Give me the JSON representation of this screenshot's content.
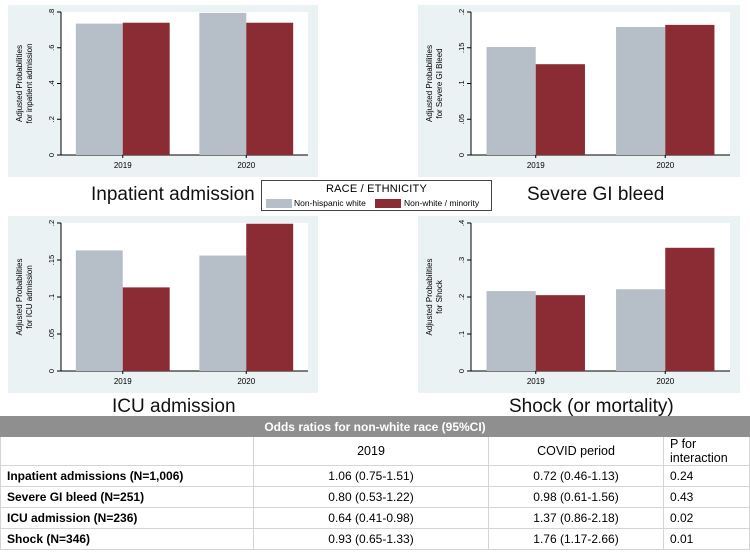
{
  "colors": {
    "white_series": "#b6bfc8",
    "minority_series": "#8b2c35",
    "plot_bg": "#eaf2f3",
    "axis": "#000000",
    "table_header_bg": "#8f8f8f"
  },
  "legend": {
    "title": "RACE / ETHNICITY",
    "items": [
      "Non-hispanic white",
      "Non-white / minority"
    ]
  },
  "chart_data": [
    {
      "type": "bar",
      "caption": "Inpatient admission",
      "ylabel_lines": [
        "Adjusted Probabilities",
        "for inpatient admission"
      ],
      "categories": [
        "2019",
        "2020"
      ],
      "series": [
        {
          "name": "Non-hispanic white",
          "values": [
            0.735,
            0.795
          ]
        },
        {
          "name": "Non-white / minority",
          "values": [
            0.74,
            0.74
          ]
        }
      ],
      "ylim": [
        0,
        0.8
      ],
      "yticks": [
        0,
        0.2,
        0.4,
        0.6,
        0.8
      ],
      "ytick_labels": [
        "0",
        ".2",
        ".4",
        ".6",
        ".8"
      ]
    },
    {
      "type": "bar",
      "caption": "Severe GI bleed",
      "ylabel_lines": [
        "Adjusted Probabilities",
        "for Severe GI Bleed"
      ],
      "categories": [
        "2019",
        "2020"
      ],
      "series": [
        {
          "name": "Non-hispanic white",
          "values": [
            0.151,
            0.179
          ]
        },
        {
          "name": "Non-white / minority",
          "values": [
            0.127,
            0.182
          ]
        }
      ],
      "ylim": [
        0,
        0.2
      ],
      "yticks": [
        0,
        0.05,
        0.1,
        0.15,
        0.2
      ],
      "ytick_labels": [
        "0",
        ".05",
        ".1",
        ".15",
        ".2"
      ]
    },
    {
      "type": "bar",
      "caption": "ICU admission",
      "ylabel_lines": [
        "Adjusted Probabilities",
        "for ICU admission"
      ],
      "categories": [
        "2019",
        "2020"
      ],
      "series": [
        {
          "name": "Non-hispanic white",
          "values": [
            0.163,
            0.156
          ]
        },
        {
          "name": "Non-white / minority",
          "values": [
            0.113,
            0.199
          ]
        }
      ],
      "ylim": [
        0,
        0.2
      ],
      "yticks": [
        0,
        0.05,
        0.1,
        0.15,
        0.2
      ],
      "ytick_labels": [
        "0",
        ".05",
        ".1",
        ".15",
        ".2"
      ]
    },
    {
      "type": "bar",
      "caption": "Shock (or mortality)",
      "ylabel_lines": [
        "Adjusted Probabilities",
        "for Shock"
      ],
      "categories": [
        "2019",
        "2020"
      ],
      "series": [
        {
          "name": "Non-hispanic white",
          "values": [
            0.216,
            0.221
          ]
        },
        {
          "name": "Non-white / minority",
          "values": [
            0.205,
            0.333
          ]
        }
      ],
      "ylim": [
        0,
        0.4
      ],
      "yticks": [
        0,
        0.1,
        0.2,
        0.3,
        0.4
      ],
      "ytick_labels": [
        "0",
        ".1",
        ".2",
        ".3",
        ".4"
      ]
    }
  ],
  "table": {
    "title": "Odds ratios for non-white race (95%CI)",
    "headers": [
      "",
      "2019",
      "COVID period",
      "P for interaction"
    ],
    "rows": [
      {
        "label": "Inpatient admissions (N=1,006)",
        "or_2019": "1.06 (0.75-1.51)",
        "or_covid": "0.72 (0.46-1.13)",
        "p": "0.24"
      },
      {
        "label": "Severe GI bleed (N=251)",
        "or_2019": "0.80 (0.53-1.22)",
        "or_covid": "0.98 (0.61-1.56)",
        "p": "0.43"
      },
      {
        "label": "ICU admission (N=236)",
        "or_2019": "0.64 (0.41-0.98)",
        "or_covid": "1.37 (0.86-2.18)",
        "p": "0.02"
      },
      {
        "label": "Shock (N=346)",
        "or_2019": "0.93 (0.65-1.33)",
        "or_covid": "1.76 (1.17-2.66)",
        "p": "0.01"
      }
    ]
  }
}
